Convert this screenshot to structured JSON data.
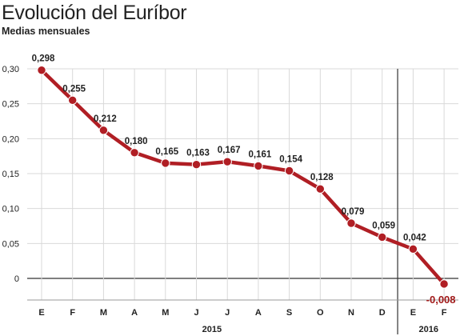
{
  "chart_data": {
    "type": "line",
    "title": "Evolución del Euríbor",
    "subtitle": "Medias mensuales",
    "categories": [
      "E",
      "F",
      "M",
      "A",
      "M",
      "J",
      "J",
      "A",
      "S",
      "O",
      "N",
      "D",
      "E",
      "F"
    ],
    "values": [
      0.298,
      0.255,
      0.212,
      0.18,
      0.165,
      0.163,
      0.167,
      0.161,
      0.154,
      0.128,
      0.079,
      0.059,
      0.042,
      -0.008
    ],
    "value_labels": [
      "0,298",
      "0,255",
      "0,212",
      "0,180",
      "0,165",
      "0,163",
      "0,167",
      "0,161",
      "0,154",
      "0,128",
      "0,079",
      "0,059",
      "0,042",
      "-0,008"
    ],
    "ylim": [
      -0.015,
      0.3
    ],
    "yticks": [
      0.3,
      0.25,
      0.2,
      0.15,
      0.1,
      0.05,
      0
    ],
    "ytick_labels": [
      "0,30",
      "0,25",
      "0,20",
      "0,15",
      "0,10",
      "0,05",
      "0"
    ],
    "year_groups": [
      {
        "label": "2015",
        "from": 0,
        "to": 11
      },
      {
        "label": "2016",
        "from": 12,
        "to": 13
      }
    ],
    "line_color": "#b01e24",
    "grid": true
  }
}
